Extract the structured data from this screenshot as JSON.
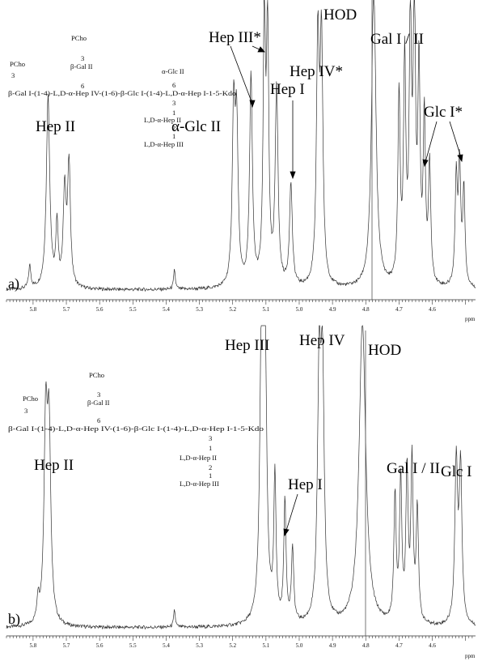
{
  "chart_data": [
    {
      "type": "line",
      "panel_label": "a)",
      "xlabel": "ppm",
      "xlim": [
        5.88,
        4.47
      ],
      "x_ticks": [
        5.8,
        5.7,
        5.6,
        5.5,
        5.4,
        5.3,
        5.2,
        5.1,
        5.0,
        4.9,
        4.8,
        4.7,
        4.6
      ],
      "peaks": [
        {
          "x": 5.81,
          "h": 0.08,
          "w": 0.004
        },
        {
          "x": 5.755,
          "h": 0.68,
          "w": 0.006
        },
        {
          "x": 5.728,
          "h": 0.22,
          "w": 0.004
        },
        {
          "x": 5.705,
          "h": 0.34,
          "w": 0.005
        },
        {
          "x": 5.692,
          "h": 0.43,
          "w": 0.005
        },
        {
          "x": 5.375,
          "h": 0.07,
          "w": 0.003
        },
        {
          "x": 5.197,
          "h": 0.6,
          "w": 0.005
        },
        {
          "x": 5.188,
          "h": 0.54,
          "w": 0.005
        },
        {
          "x": 5.145,
          "h": 0.74,
          "w": 0.005
        },
        {
          "x": 5.105,
          "h": 0.95,
          "w": 0.004
        },
        {
          "x": 5.095,
          "h": 0.9,
          "w": 0.004
        },
        {
          "x": 5.068,
          "h": 0.7,
          "w": 0.005
        },
        {
          "x": 5.025,
          "h": 0.36,
          "w": 0.005
        },
        {
          "x": 4.944,
          "h": 0.84,
          "w": 0.005
        },
        {
          "x": 4.933,
          "h": 0.84,
          "w": 0.005
        },
        {
          "x": 4.776,
          "h": 1.06,
          "w": 0.008
        },
        {
          "x": 4.7,
          "h": 0.66,
          "w": 0.004
        },
        {
          "x": 4.683,
          "h": 0.78,
          "w": 0.004
        },
        {
          "x": 4.666,
          "h": 0.92,
          "w": 0.004
        },
        {
          "x": 4.654,
          "h": 1.02,
          "w": 0.004
        },
        {
          "x": 4.64,
          "h": 0.74,
          "w": 0.004
        },
        {
          "x": 4.624,
          "h": 0.58,
          "w": 0.004
        },
        {
          "x": 4.608,
          "h": 0.42,
          "w": 0.004
        },
        {
          "x": 4.528,
          "h": 0.38,
          "w": 0.004
        },
        {
          "x": 4.518,
          "h": 0.42,
          "w": 0.004
        },
        {
          "x": 4.505,
          "h": 0.34,
          "w": 0.004
        }
      ],
      "annotations": [
        {
          "text": "Hep II"
        },
        {
          "text": "α-Glc II"
        },
        {
          "text": "Hep III*"
        },
        {
          "text": "Hep I"
        },
        {
          "text": "Hep IV*"
        },
        {
          "text": "HOD"
        },
        {
          "text": "Gal I / II"
        },
        {
          "text": "Glc I*"
        }
      ],
      "structure_lines": [
        "PCho",
        "3",
        "β-Gal II",
        "PCho",
        "3",
        "6",
        "α-Glc II",
        "6",
        "β-Gal I-(1-4)-L,D-α-Hep IV-(1-6)-β-Glc I-(1-4)-L,D-α-Hep I-1-5-Kdo",
        "3",
        "1",
        "L,D-α-Hep II",
        "2",
        "1",
        "L,D-α-Hep III"
      ]
    },
    {
      "type": "line",
      "panel_label": "b)",
      "xlabel": "ppm",
      "xlim": [
        5.88,
        4.47
      ],
      "x_ticks": [
        5.8,
        5.7,
        5.6,
        5.5,
        5.4,
        5.3,
        5.2,
        5.1,
        5.0,
        4.9,
        4.8,
        4.7,
        4.6
      ],
      "peaks": [
        {
          "x": 5.785,
          "h": 0.08,
          "w": 0.004
        },
        {
          "x": 5.762,
          "h": 0.68,
          "w": 0.006
        },
        {
          "x": 5.752,
          "h": 0.64,
          "w": 0.006
        },
        {
          "x": 5.375,
          "h": 0.06,
          "w": 0.003
        },
        {
          "x": 5.113,
          "h": 1.0,
          "w": 0.006
        },
        {
          "x": 5.103,
          "h": 0.92,
          "w": 0.006
        },
        {
          "x": 5.073,
          "h": 0.5,
          "w": 0.004
        },
        {
          "x": 5.043,
          "h": 0.42,
          "w": 0.004
        },
        {
          "x": 5.02,
          "h": 0.26,
          "w": 0.004
        },
        {
          "x": 4.94,
          "h": 0.82,
          "w": 0.006
        },
        {
          "x": 4.93,
          "h": 0.82,
          "w": 0.006
        },
        {
          "x": 4.81,
          "h": 1.06,
          "w": 0.012
        },
        {
          "x": 4.712,
          "h": 0.44,
          "w": 0.004
        },
        {
          "x": 4.695,
          "h": 0.5,
          "w": 0.004
        },
        {
          "x": 4.676,
          "h": 0.52,
          "w": 0.004
        },
        {
          "x": 4.661,
          "h": 0.56,
          "w": 0.004
        },
        {
          "x": 4.645,
          "h": 0.4,
          "w": 0.004
        },
        {
          "x": 4.528,
          "h": 0.56,
          "w": 0.005
        },
        {
          "x": 4.515,
          "h": 0.54,
          "w": 0.005
        }
      ],
      "annotations": [
        {
          "text": "Hep II"
        },
        {
          "text": "Hep III"
        },
        {
          "text": "Hep IV"
        },
        {
          "text": "HOD"
        },
        {
          "text": "Hep I"
        },
        {
          "text": "Gal I / II"
        },
        {
          "text": "Glc I"
        }
      ],
      "structure_lines": [
        "PCho",
        "3",
        "β-Gal II",
        "PCho",
        "3",
        "6",
        "β-Gal I-(1-4)-L,D-α-Hep IV-(1-6)-β-Glc I-(1-4)-L,D-α-Hep I-1-5-Kdo",
        "3",
        "1",
        "L,D-α-Hep II",
        "2",
        "1",
        "L,D-α-Hep III"
      ]
    }
  ]
}
